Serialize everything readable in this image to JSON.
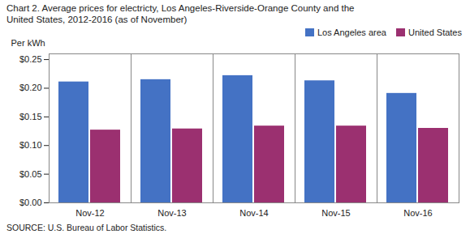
{
  "chart_data": {
    "type": "bar",
    "title": "Chart 2. Average prices for electricty, Los Angeles-Riverside-Orange County and the",
    "subtitle": "United States, 2012-2016  (as of November)",
    "y_label": "Per kWh",
    "source": "SOURCE: U.S. Bureau of Labor Statistics.",
    "categories": [
      "Nov-12",
      "Nov-13",
      "Nov-14",
      "Nov-15",
      "Nov-16"
    ],
    "series": [
      {
        "name": "Los Angeles area",
        "color": "#4472C4",
        "values": [
          0.211,
          0.215,
          0.222,
          0.213,
          0.191
        ]
      },
      {
        "name": "United States",
        "color": "#9B3070",
        "values": [
          0.127,
          0.129,
          0.134,
          0.134,
          0.13
        ]
      }
    ],
    "ylim": [
      0.0,
      0.26
    ],
    "yticks": [
      {
        "value": 0.0,
        "label": "$0.00"
      },
      {
        "value": 0.05,
        "label": "$0.05"
      },
      {
        "value": 0.1,
        "label": "$0.10"
      },
      {
        "value": 0.15,
        "label": "$0.15"
      },
      {
        "value": 0.2,
        "label": "$0.20"
      },
      {
        "value": 0.25,
        "label": "$0.25"
      }
    ],
    "grid": false,
    "legend": "upper right"
  }
}
